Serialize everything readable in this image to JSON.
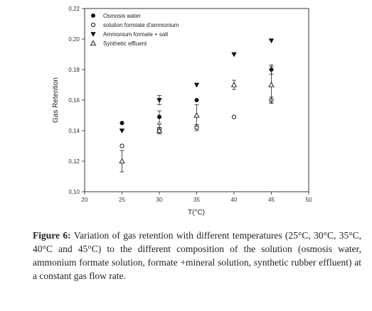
{
  "chart_data": {
    "type": "scatter",
    "xlabel": "T(°C)",
    "ylabel": "Gas Retention",
    "xlim": [
      20,
      50
    ],
    "ylim": [
      0.1,
      0.22
    ],
    "xticks": [
      "20",
      "25",
      "30",
      "35",
      "40",
      "45",
      "50"
    ],
    "yticks": [
      "0,10",
      "0,12",
      "0,14",
      "0,16",
      "0,18",
      "0,20",
      "0,22"
    ],
    "legend_position": "top-left",
    "series": [
      {
        "name": "Osmosis water",
        "marker": "filled-circle",
        "points": [
          {
            "x": 25,
            "y": 0.145,
            "err": 0
          },
          {
            "x": 30,
            "y": 0.149,
            "err": 0.004
          },
          {
            "x": 35,
            "y": 0.16,
            "err": 0
          },
          {
            "x": 45,
            "y": 0.18,
            "err": 0.003
          }
        ]
      },
      {
        "name": "solution formiate d'ammonium",
        "marker": "open-circle",
        "points": [
          {
            "x": 25,
            "y": 0.13,
            "err": 0
          },
          {
            "x": 30,
            "y": 0.141,
            "err": 0.003
          },
          {
            "x": 35,
            "y": 0.142,
            "err": 0.002
          },
          {
            "x": 40,
            "y": 0.149,
            "err": 0
          },
          {
            "x": 45,
            "y": 0.16,
            "err": 0.002
          }
        ]
      },
      {
        "name": "Ammonium formate + salt",
        "marker": "filled-triangle-down",
        "points": [
          {
            "x": 25,
            "y": 0.14,
            "err": 0
          },
          {
            "x": 30,
            "y": 0.16,
            "err": 0.003
          },
          {
            "x": 35,
            "y": 0.17,
            "err": 0
          },
          {
            "x": 40,
            "y": 0.19,
            "err": 0
          },
          {
            "x": 45,
            "y": 0.199,
            "err": 0
          }
        ]
      },
      {
        "name": "Synthetic effluent",
        "marker": "open-triangle-up",
        "points": [
          {
            "x": 25,
            "y": 0.12,
            "err": 0.007
          },
          {
            "x": 30,
            "y": 0.14,
            "err": 0.002
          },
          {
            "x": 35,
            "y": 0.15,
            "err": 0.007
          },
          {
            "x": 40,
            "y": 0.17,
            "err": 0.003
          },
          {
            "x": 45,
            "y": 0.17,
            "err": 0.012
          }
        ]
      }
    ]
  },
  "caption": {
    "label": "Figure 6:",
    "text": "Variation of gas retention with different temperatures (25°C, 30°C, 35°C, 40°C and 45°C) to the different composition of the solution (osmosis water, ammonium formate solution, formate +mineral solution, synthetic rubber effluent) at a constant gas flow rate."
  }
}
